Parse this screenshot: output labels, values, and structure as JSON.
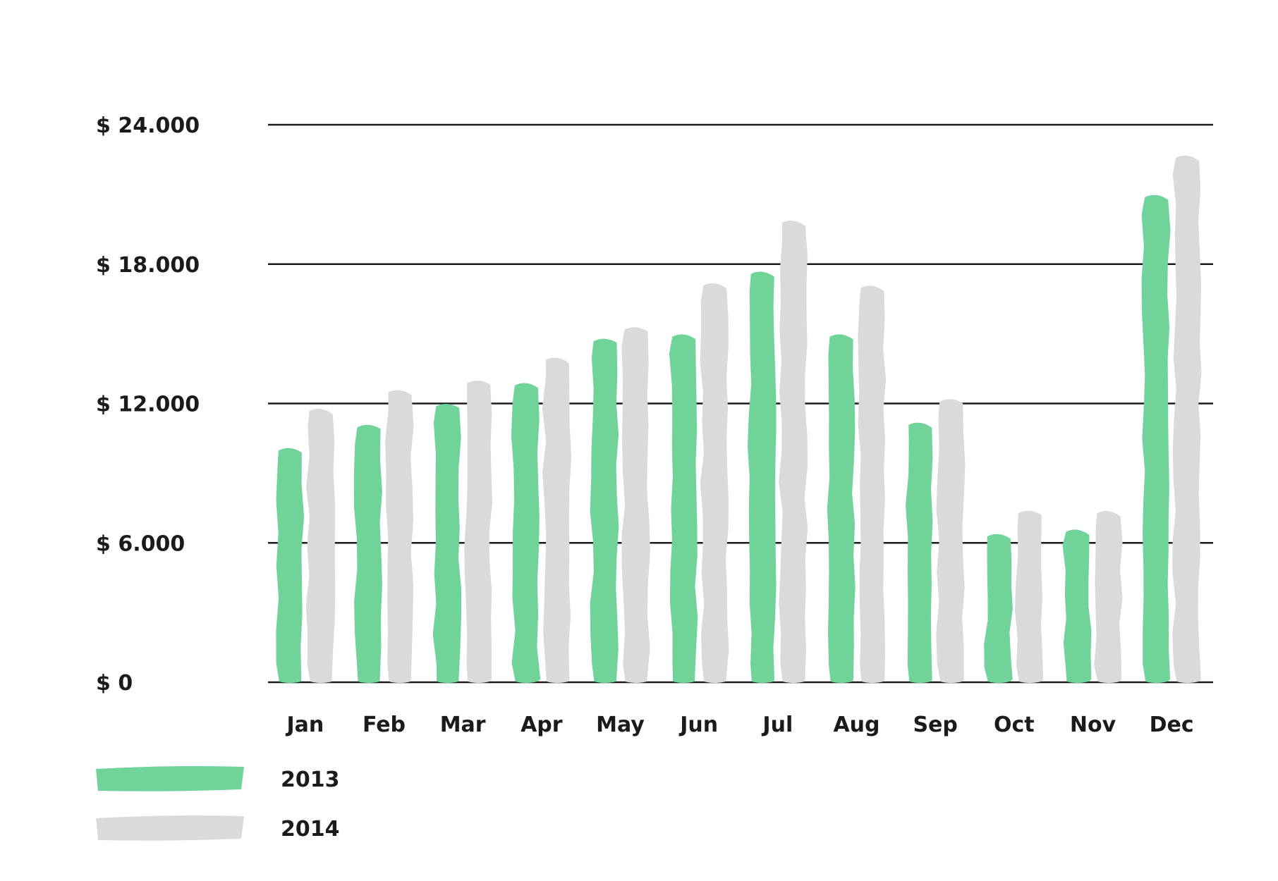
{
  "chart_data": {
    "type": "bar",
    "categories": [
      "Jan",
      "Feb",
      "Mar",
      "Apr",
      "May",
      "Jun",
      "Jul",
      "Aug",
      "Sep",
      "Oct",
      "Nov",
      "Dec"
    ],
    "series": [
      {
        "name": "2013",
        "color": "#6fd39a",
        "values": [
          10100,
          11100,
          12000,
          12900,
          14800,
          15000,
          17700,
          15000,
          11200,
          6400,
          6600,
          21000
        ]
      },
      {
        "name": "2014",
        "color": "#d9dada",
        "values": [
          11800,
          12600,
          13000,
          14000,
          15300,
          17200,
          19900,
          17100,
          12200,
          7400,
          7400,
          22700
        ]
      }
    ],
    "yticks": [
      "$ 24.000",
      "$ 18.000",
      "$ 12.000",
      "$ 6.000",
      "$ 0"
    ],
    "ytick_values": [
      24000,
      18000,
      12000,
      6000,
      0
    ],
    "ylim": [
      0,
      24000
    ],
    "grid": true,
    "legend_position": "bottom-left"
  }
}
